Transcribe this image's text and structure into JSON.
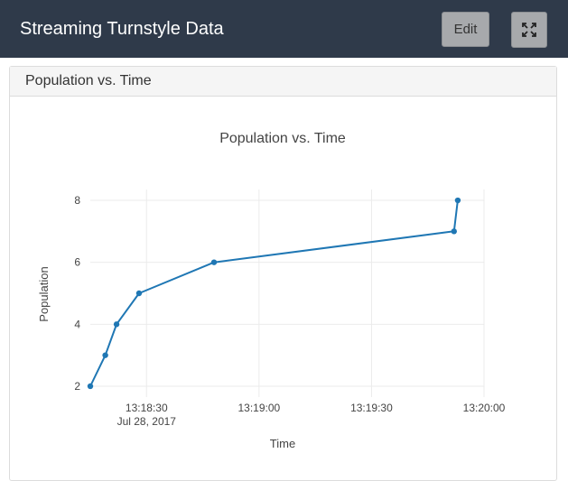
{
  "header": {
    "title": "Streaming Turnstyle Data",
    "edit_label": "Edit",
    "fullscreen_icon": "fullscreen-icon",
    "background_color": "#2f3a4a"
  },
  "panel": {
    "title": "Population vs. Time"
  },
  "chart_data": {
    "type": "line",
    "title": "Population vs. Time",
    "xlabel": "Time",
    "ylabel": "Population",
    "x": [
      "13:18:15",
      "13:18:19",
      "13:18:22",
      "13:18:28",
      "13:18:48",
      "13:19:52",
      "13:19:53"
    ],
    "y": [
      2,
      3,
      4,
      5,
      6,
      7,
      8
    ],
    "x_range": [
      "13:18:15",
      "13:20:00"
    ],
    "y_range": [
      1.65,
      8.35
    ],
    "x_ticks": [
      {
        "value": "13:18:30",
        "label": "13:18:30",
        "sublabel": "Jul 28, 2017"
      },
      {
        "value": "13:19:00",
        "label": "13:19:00"
      },
      {
        "value": "13:19:30",
        "label": "13:19:30"
      },
      {
        "value": "13:20:00",
        "label": "13:20:00"
      }
    ],
    "y_ticks": [
      2,
      4,
      6,
      8
    ],
    "grid": true,
    "line_color": "#1f77b4"
  }
}
